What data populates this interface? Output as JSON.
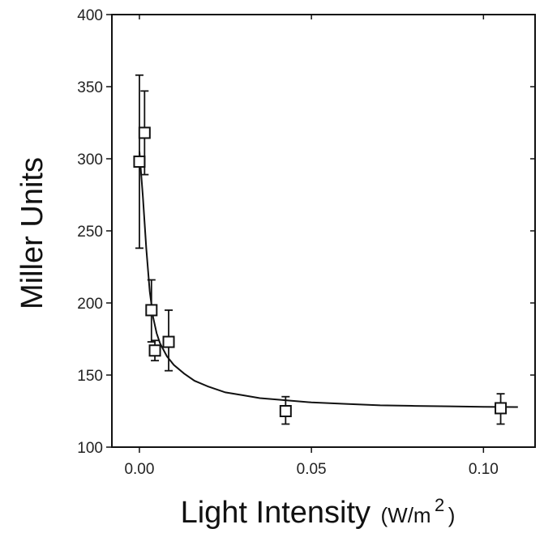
{
  "chart_data": {
    "type": "scatter",
    "title": "",
    "xlabel": "Light Intensity",
    "xlabel_unit": "(W/m",
    "xlabel_unit_sup": "2",
    "xlabel_unit_close": ")",
    "ylabel": "Miller Units",
    "xlim": [
      -0.008,
      0.115
    ],
    "ylim": [
      100,
      400
    ],
    "xticks": [
      0.0,
      0.05,
      0.1
    ],
    "xtick_labels": [
      "0.00",
      "0.05",
      "0.10"
    ],
    "yticks": [
      100,
      150,
      200,
      250,
      300,
      350,
      400
    ],
    "ytick_labels": [
      "100",
      "150",
      "200",
      "250",
      "300",
      "350",
      "400"
    ],
    "grid": false,
    "legend": "none",
    "marker": "open-square",
    "color": "#111111",
    "series": [
      {
        "points": [
          {
            "x": 0.0,
            "y": 298,
            "err_low": 238,
            "err_high": 358
          },
          {
            "x": 0.0015,
            "y": 318,
            "err_low": 289,
            "err_high": 347
          },
          {
            "x": 0.0035,
            "y": 195,
            "err_low": 173,
            "err_high": 216
          },
          {
            "x": 0.0045,
            "y": 167,
            "err_low": 160,
            "err_high": 174
          },
          {
            "x": 0.0085,
            "y": 173,
            "err_low": 153,
            "err_high": 195
          },
          {
            "x": 0.0425,
            "y": 125,
            "err_low": 116,
            "err_high": 135
          },
          {
            "x": 0.105,
            "y": 127,
            "err_low": 116,
            "err_high": 137
          }
        ]
      }
    ],
    "fit_curve": {
      "x": [
        0.0,
        0.001,
        0.002,
        0.003,
        0.004,
        0.005,
        0.006,
        0.008,
        0.01,
        0.013,
        0.016,
        0.02,
        0.025,
        0.03,
        0.035,
        0.04,
        0.05,
        0.06,
        0.07,
        0.08,
        0.09,
        0.1,
        0.11
      ],
      "y": [
        305,
        274,
        238,
        208,
        190,
        179,
        172,
        163,
        157,
        151,
        146,
        142,
        138,
        136,
        134,
        133,
        131,
        130,
        129,
        128.6,
        128.3,
        128,
        127.8
      ]
    }
  }
}
